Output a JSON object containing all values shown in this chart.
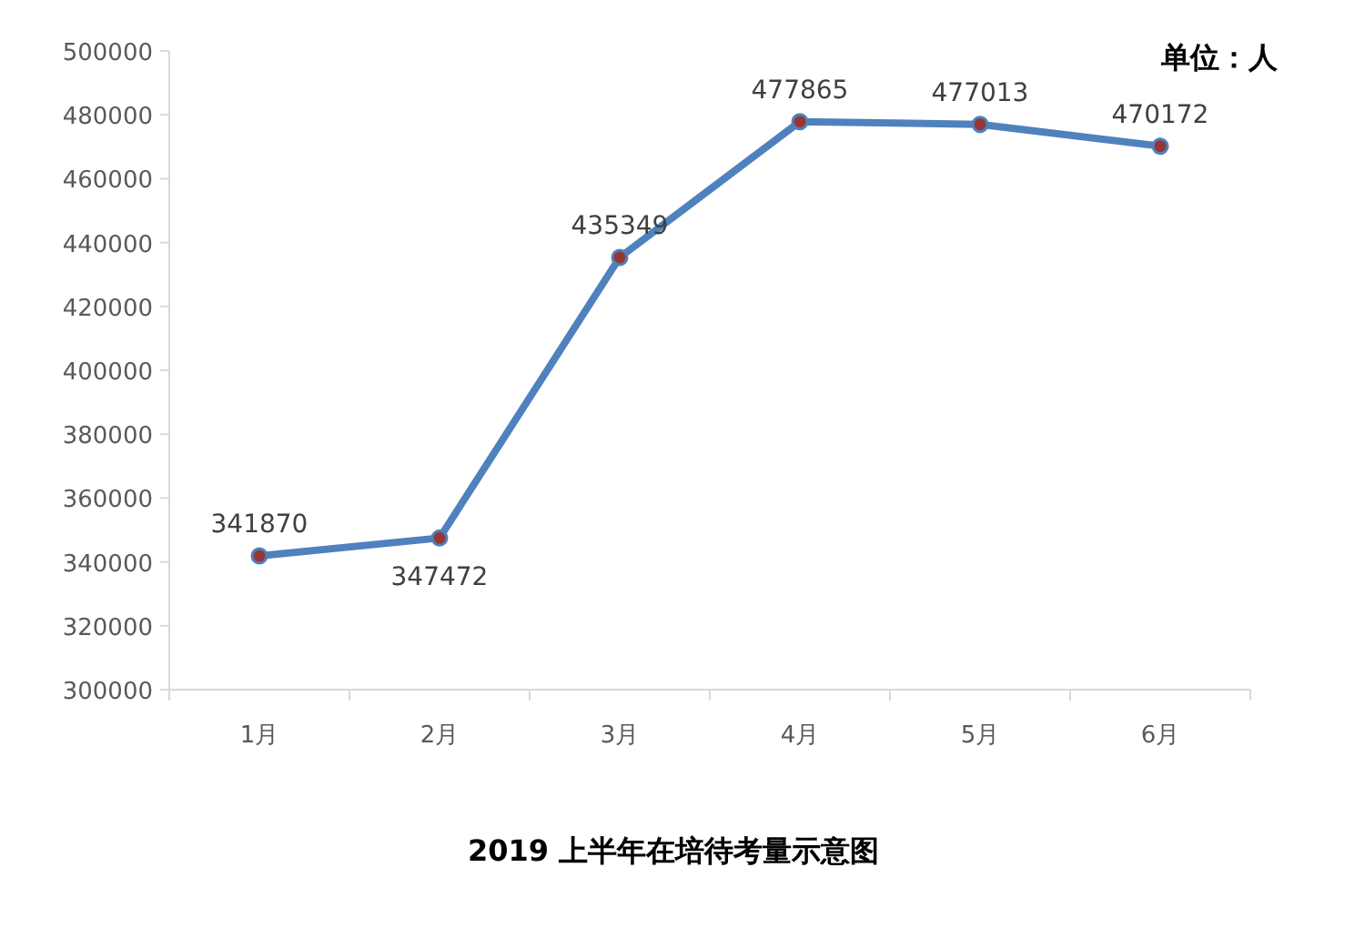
{
  "chart_data": {
    "type": "line",
    "title": "2019 上半年在培待考量示意图",
    "categories": [
      "1月",
      "2月",
      "3月",
      "4月",
      "5月",
      "6月"
    ],
    "values": [
      341870,
      347472,
      435349,
      477865,
      477013,
      470172
    ],
    "color": "#4f81bd",
    "marker": "circle",
    "data_labels": true,
    "ylim": [
      300000,
      500000
    ],
    "yticks": [
      300000,
      320000,
      340000,
      360000,
      380000,
      400000,
      420000,
      440000,
      460000,
      480000,
      500000
    ],
    "annotations": [
      "单位：人"
    ]
  }
}
